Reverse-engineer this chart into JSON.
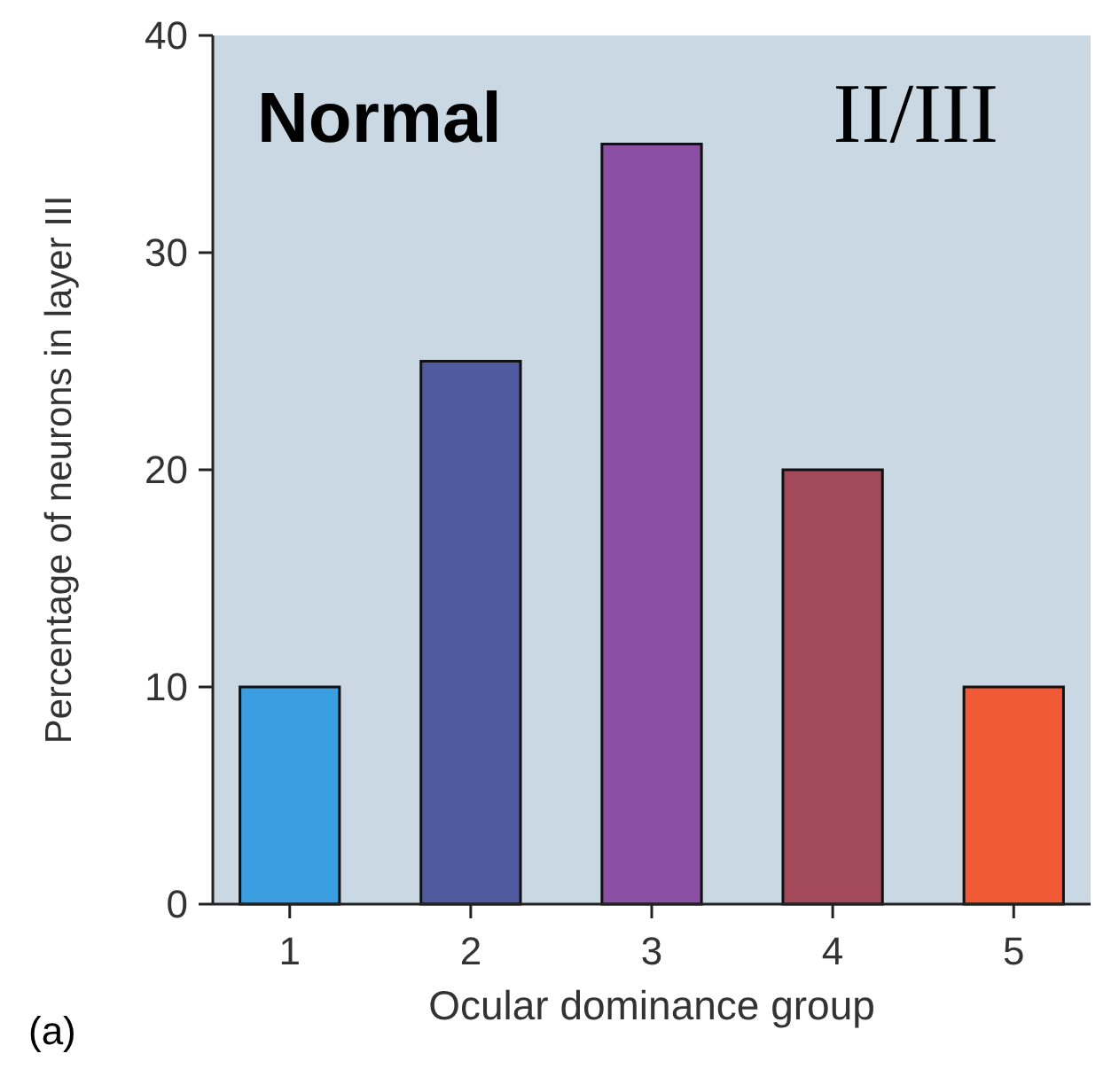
{
  "chart_data": {
    "type": "bar",
    "xlabel": "Ocular dominance group",
    "ylabel": "Percentage of neurons in layer III",
    "categories": [
      "1",
      "2",
      "3",
      "4",
      "5"
    ],
    "values": [
      10,
      25,
      35,
      20,
      10
    ],
    "colors": [
      "#3a9ee0",
      "#4f5b9e",
      "#8b4fa3",
      "#a34a5a",
      "#f05a35"
    ],
    "ylim": [
      0,
      40
    ],
    "yticks": [
      0,
      10,
      20,
      30,
      40
    ],
    "annotations": [
      "Normal",
      "II/III",
      "(a)"
    ]
  }
}
